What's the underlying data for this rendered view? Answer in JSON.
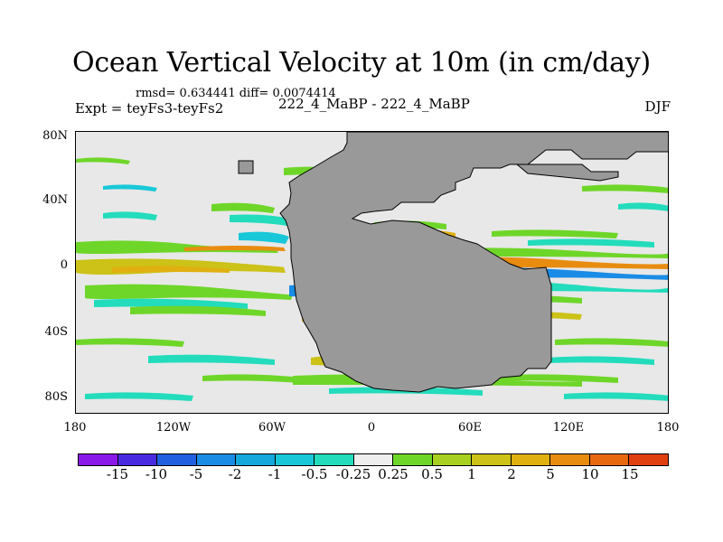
{
  "title": "Ocean Vertical Velocity at 10m (in cm/day)",
  "stats_line": "rmsd= 0.634441 diff= 0.0074414",
  "expt_line": "Expt = teyFs3-teyFs2",
  "center_label": "222_4_MaBP - 222_4_MaBP",
  "season": "DJF",
  "colors": {
    "land": "#999999",
    "ocean_background": "#e8e8e8"
  },
  "axes": {
    "y_ticks": [
      "80N",
      "40N",
      "0",
      "40S",
      "80S"
    ],
    "x_ticks": [
      "180",
      "120W",
      "60W",
      "0",
      "60E",
      "120E",
      "180"
    ]
  },
  "colorbar": {
    "colors": [
      "#8a18e8",
      "#4a2ae0",
      "#2060e0",
      "#1a8ce6",
      "#15a8dc",
      "#18c8d8",
      "#22dcbc",
      "#eeeeee",
      "#6ed628",
      "#a8d020",
      "#ccc218",
      "#e0b010",
      "#e88c10",
      "#e86810",
      "#e04010"
    ],
    "labels": [
      "-15",
      "-10",
      "-5",
      "-2",
      "-1",
      "-0.5",
      "-0.25",
      "0.25",
      "0.5",
      "1",
      "2",
      "5",
      "10",
      "15"
    ]
  }
}
